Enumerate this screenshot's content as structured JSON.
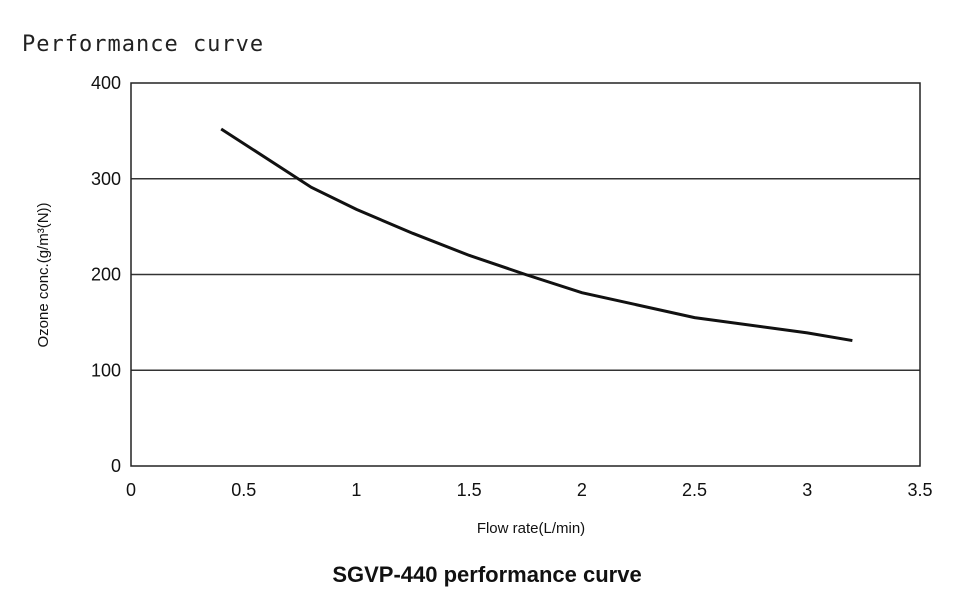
{
  "page": {
    "heading": "Performance curve"
  },
  "chart_data": {
    "type": "line",
    "title": "SGVP-440 performance curve",
    "xlabel": "Flow rate(L/min)",
    "ylabel": "Ozone conc.(g/m³(N))",
    "xlim": [
      0,
      3.5
    ],
    "ylim": [
      0,
      400
    ],
    "xticks": [
      "0",
      "0.5",
      "1",
      "1.5",
      "2",
      "2.5",
      "3",
      "3.5"
    ],
    "yticks": [
      "0",
      "100",
      "200",
      "300",
      "400"
    ],
    "grid": "horizontal",
    "line_color": "#111111",
    "series": [
      {
        "x": [
          0.4,
          0.8,
          1.0,
          1.25,
          1.5,
          1.75,
          2.0,
          2.5,
          3.0,
          3.2
        ],
        "y": [
          352,
          291,
          268,
          243,
          220,
          200,
          181,
          155,
          139,
          131
        ]
      }
    ]
  }
}
